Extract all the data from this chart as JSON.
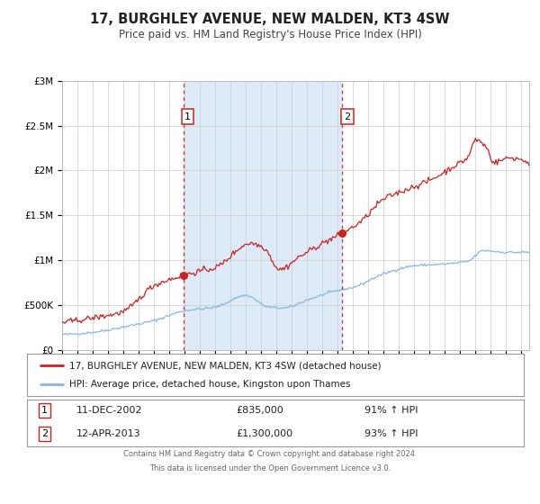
{
  "title": "17, BURGHLEY AVENUE, NEW MALDEN, KT3 4SW",
  "subtitle": "Price paid vs. HM Land Registry's House Price Index (HPI)",
  "ylim": [
    0,
    3000000
  ],
  "xlim_start": 1995.0,
  "xlim_end": 2025.5,
  "background_color": "#ffffff",
  "plot_bg_color": "#ffffff",
  "shade_color": "#ddeaf7",
  "shade_x1": 2002.95,
  "shade_x2": 2013.28,
  "hpi_line_color": "#88b8e0",
  "price_line_color": "#cc2222",
  "dashed_line_color": "#cc3333",
  "marker1_x": 2002.95,
  "marker1_y": 835000,
  "marker2_x": 2013.28,
  "marker2_y": 1300000,
  "legend_price_label": "17, BURGHLEY AVENUE, NEW MALDEN, KT3 4SW (detached house)",
  "legend_hpi_label": "HPI: Average price, detached house, Kingston upon Thames",
  "table_row1": [
    "1",
    "11-DEC-2002",
    "£835,000",
    "91% ↑ HPI"
  ],
  "table_row2": [
    "2",
    "12-APR-2013",
    "£1,300,000",
    "93% ↑ HPI"
  ],
  "footnote1": "Contains HM Land Registry data © Crown copyright and database right 2024.",
  "footnote2": "This data is licensed under the Open Government Licence v3.0.",
  "yticks": [
    0,
    500000,
    1000000,
    1500000,
    2000000,
    2500000,
    3000000
  ],
  "ytick_labels": [
    "£0",
    "£500K",
    "£1M",
    "£1.5M",
    "£2M",
    "£2.5M",
    "£3M"
  ]
}
